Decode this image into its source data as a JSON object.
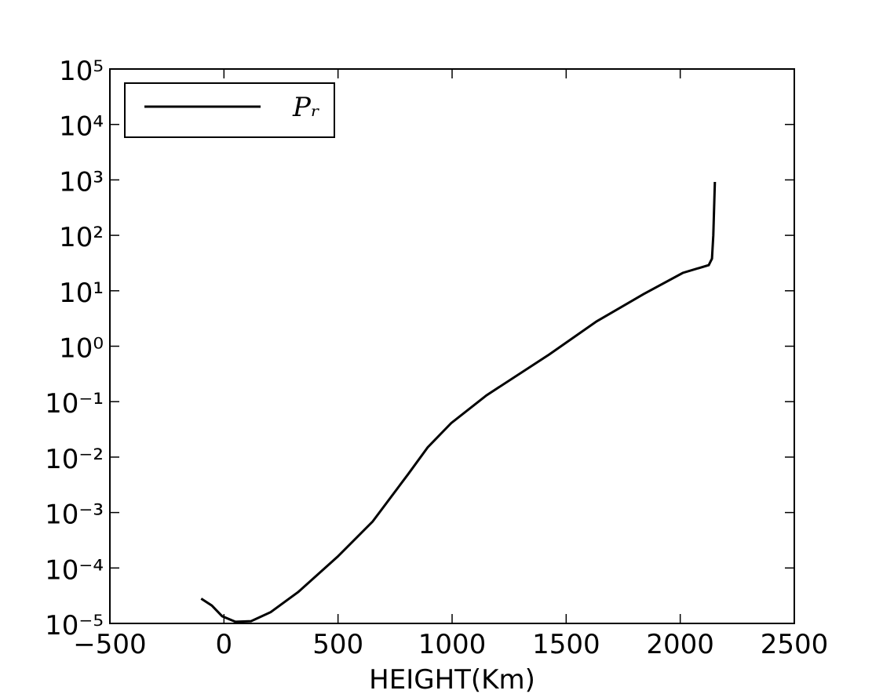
{
  "chart_data": {
    "type": "line",
    "xlabel": "HEIGHT(Km)",
    "log_y": true,
    "legend": "upper left",
    "xlim": [
      -500,
      2500
    ],
    "xticks": [
      {
        "value": -500,
        "label": "−500"
      },
      0,
      500,
      1000,
      1500,
      2000,
      2500
    ],
    "ylim": [
      1e-05,
      100000
    ],
    "yticks": [
      {
        "value": 1e-05,
        "label": "10⁻⁵"
      },
      {
        "value": 0.0001,
        "label": "10⁻⁴"
      },
      {
        "value": 0.001,
        "label": "10⁻³"
      },
      {
        "value": 0.01,
        "label": "10⁻²"
      },
      {
        "value": 0.1,
        "label": "10⁻¹"
      },
      {
        "value": 1,
        "label": "10⁰"
      },
      {
        "value": 10,
        "label": "10¹"
      },
      {
        "value": 100,
        "label": "10²"
      },
      {
        "value": 1000,
        "label": "10³"
      },
      {
        "value": 10000,
        "label": "10⁴"
      },
      {
        "value": 100000,
        "label": "10⁵"
      }
    ],
    "x": [
      -100,
      -53,
      -8,
      50,
      119,
      205,
      326,
      498,
      652,
      807,
      893,
      996,
      1151,
      1426,
      1633,
      1839,
      2011,
      2125,
      2139,
      2145,
      2152
    ],
    "series": [
      {
        "name": "Pᵣ",
        "color": "#000000",
        "values": [
          2.8e-05,
          2.1e-05,
          1.35e-05,
          1.07e-05,
          1.1e-05,
          1.6e-05,
          3.7e-05,
          0.00016,
          0.00069,
          0.0049,
          0.015,
          0.041,
          0.13,
          0.71,
          2.8,
          8.7,
          21,
          29,
          38,
          100,
          920
        ]
      }
    ]
  }
}
